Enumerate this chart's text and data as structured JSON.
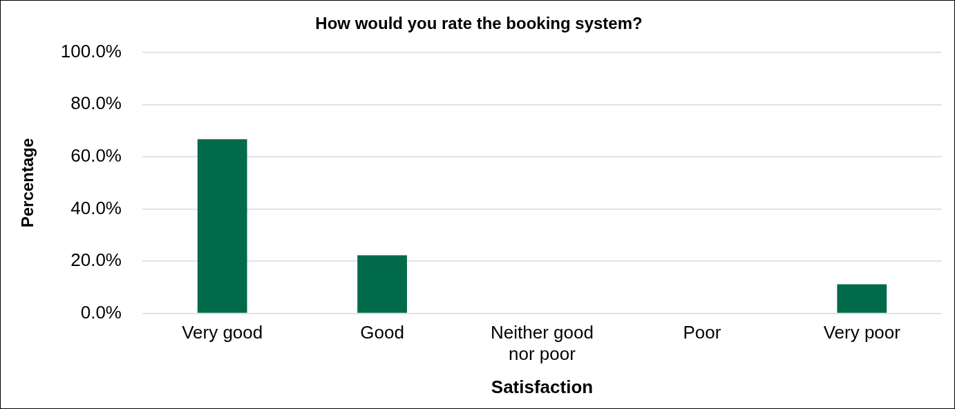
{
  "chart_data": {
    "type": "bar",
    "title": "How would you rate the booking system?",
    "xlabel": "Satisfaction",
    "ylabel": "Percentage",
    "categories": [
      "Very good",
      "Good",
      "Neither good nor poor",
      "Poor",
      "Very poor"
    ],
    "values": [
      66.7,
      22.2,
      0,
      0,
      11.1
    ],
    "color": "#006a4a",
    "ylim": [
      0,
      100
    ],
    "yticks": [
      {
        "value": 0,
        "label": "0.0%"
      },
      {
        "value": 20,
        "label": "20.0%"
      },
      {
        "value": 40,
        "label": "40.0%"
      },
      {
        "value": 60,
        "label": "60.0%"
      },
      {
        "value": 80,
        "label": "80.0%"
      },
      {
        "value": 100,
        "label": "100.0%"
      }
    ],
    "grid": "y",
    "legend": false
  }
}
